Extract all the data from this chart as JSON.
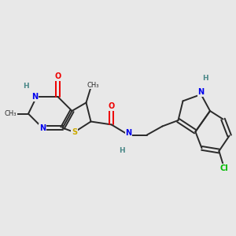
{
  "background_color": "#e8e8e8",
  "bond_color": "#2a2a2a",
  "atom_colors": {
    "N": "#0000ee",
    "O": "#ee0000",
    "S": "#ccaa00",
    "Cl": "#00bb00",
    "H_label": "#4a8888",
    "C": "#2a2a2a"
  },
  "figsize": [
    3.0,
    3.0
  ],
  "dpi": 100,
  "xlim": [
    0,
    10
  ],
  "ylim": [
    0,
    10
  ]
}
